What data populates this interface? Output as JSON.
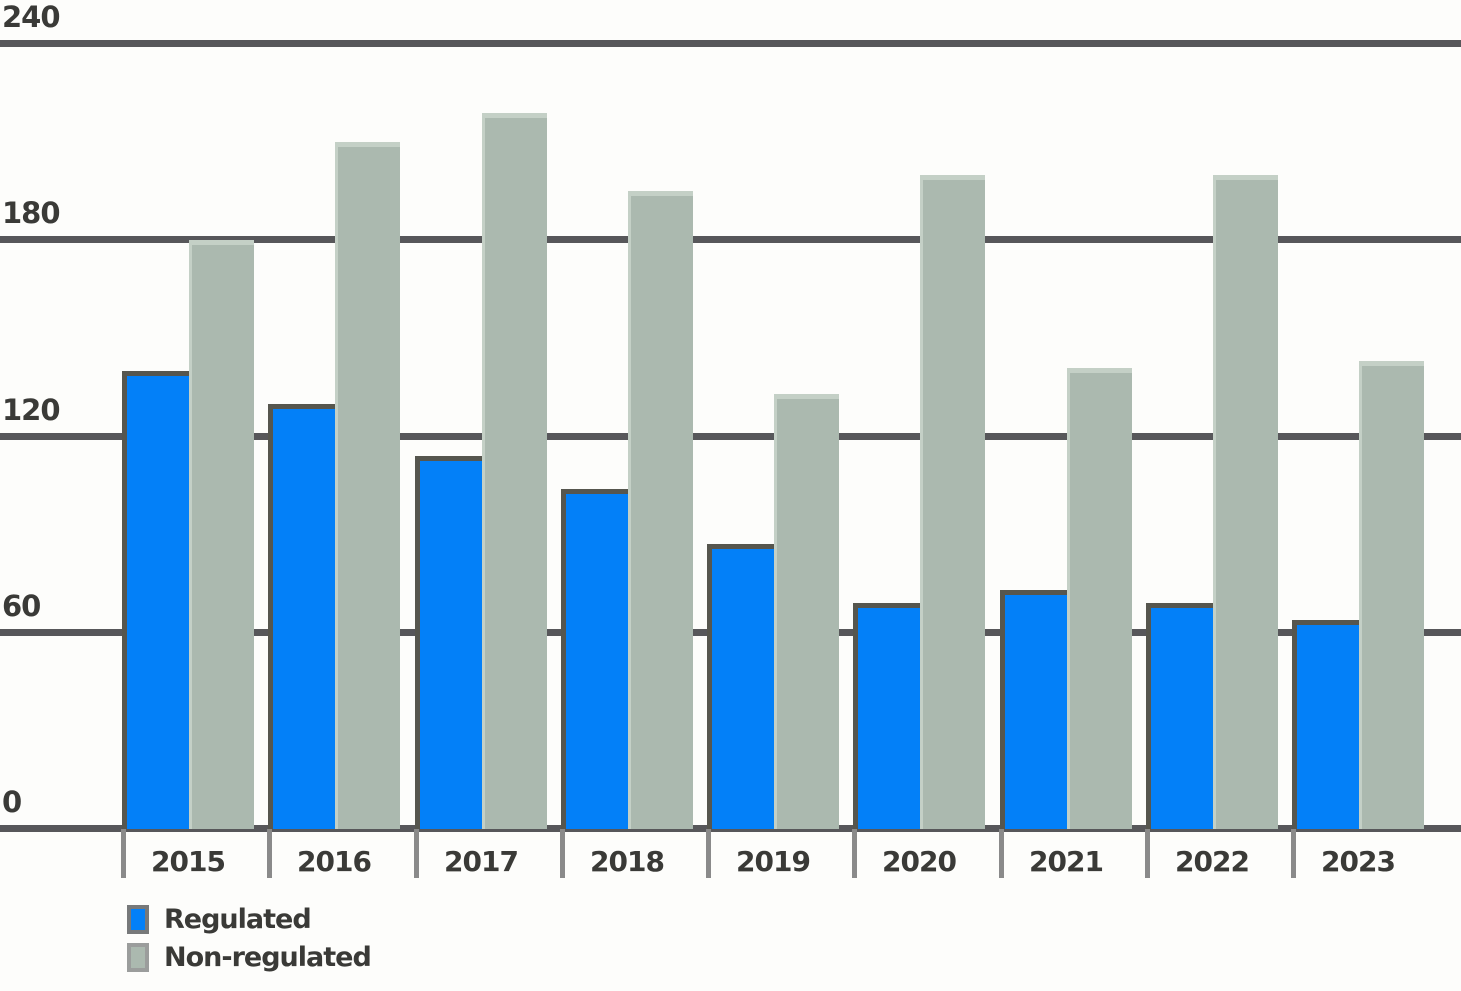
{
  "chart_data": {
    "type": "bar",
    "title": "",
    "categories": [
      "2015",
      "2016",
      "2017",
      "2018",
      "2019",
      "2020",
      "2021",
      "2022",
      "2023"
    ],
    "series": [
      {
        "name": "Regulated",
        "color": "#0380f8",
        "edge_color": "#56564e",
        "legend_border_color": "#77797a",
        "values": [
          140,
          130,
          114,
          104,
          87,
          69,
          73,
          69,
          64
        ]
      },
      {
        "name": "Non-regulated",
        "color": "#abb9af",
        "edge_color": "#c4d0c6",
        "legend_border_color": "#9b9d9c",
        "values": [
          180,
          210,
          219,
          195,
          133,
          200,
          141,
          200,
          143
        ]
      }
    ],
    "ylim": [
      0,
      240
    ],
    "yticks": [
      240,
      180,
      120,
      60,
      0
    ],
    "grid": true,
    "legend_position": "bottom-left"
  },
  "style": {
    "background_color": "#fdfdfb",
    "gridline_color": "#57575a",
    "axis_tick_color": "#8a8a8a",
    "text_color": "#3a3a37"
  }
}
